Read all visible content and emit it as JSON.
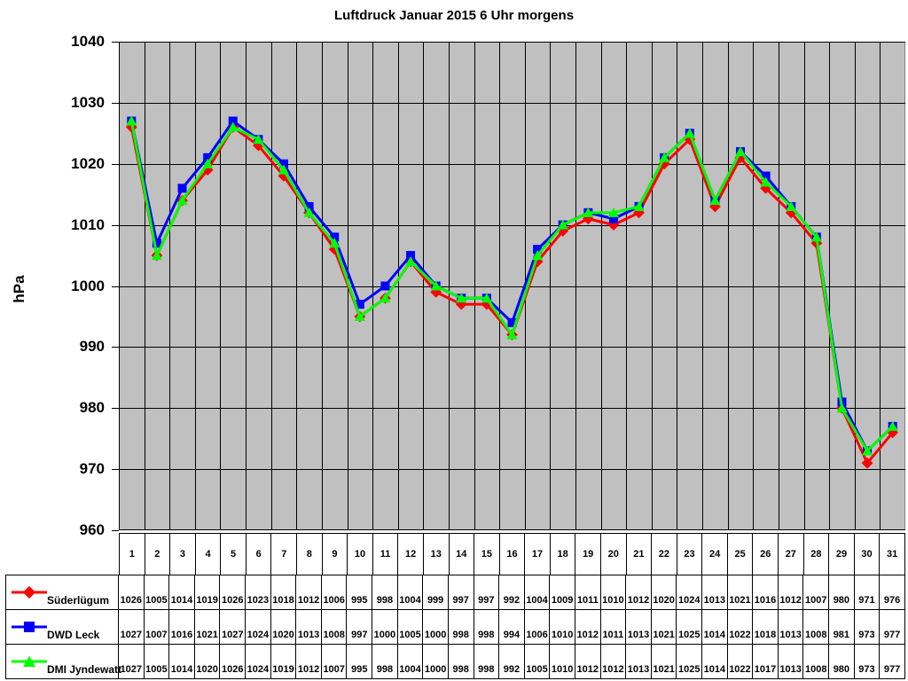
{
  "title": "Luftdruck Januar 2015 6 Uhr morgens",
  "chart_data": {
    "type": "line",
    "title": "Luftdruck Januar 2015 6 Uhr morgens",
    "xlabel": "",
    "ylabel": "hPa",
    "ylim": [
      960,
      1040
    ],
    "yticks": [
      1040,
      1030,
      1020,
      1010,
      1000,
      990,
      980,
      970,
      960
    ],
    "grid": true,
    "plot_bg_color": "#c0c0c0",
    "grid_color": "#000000",
    "legend_position": "table-left",
    "x": [
      1,
      2,
      3,
      4,
      5,
      6,
      7,
      8,
      9,
      10,
      11,
      12,
      13,
      14,
      15,
      16,
      17,
      18,
      19,
      20,
      21,
      22,
      23,
      24,
      25,
      26,
      27,
      28,
      29,
      30,
      31
    ],
    "series": [
      {
        "name": "Süderlügum",
        "color": "#ff0000",
        "marker": "diamond",
        "values": [
          1026,
          1005,
          1014,
          1019,
          1026,
          1023,
          1018,
          1012,
          1006,
          995,
          998,
          1004,
          999,
          997,
          997,
          992,
          1004,
          1009,
          1011,
          1010,
          1012,
          1020,
          1024,
          1013,
          1021,
          1016,
          1012,
          1007,
          980,
          971,
          976
        ]
      },
      {
        "name": "DWD Leck",
        "color": "#0000ff",
        "marker": "square",
        "values": [
          1027,
          1007,
          1016,
          1021,
          1027,
          1024,
          1020,
          1013,
          1008,
          997,
          1000,
          1005,
          1000,
          998,
          998,
          994,
          1006,
          1010,
          1012,
          1011,
          1013,
          1021,
          1025,
          1014,
          1022,
          1018,
          1013,
          1008,
          981,
          973,
          977
        ]
      },
      {
        "name": "DMI Jyndewatt",
        "color": "#00ff00",
        "marker": "triangle",
        "values": [
          1027,
          1005,
          1014,
          1020,
          1026,
          1024,
          1019,
          1012,
          1007,
          995,
          998,
          1004,
          1000,
          998,
          998,
          992,
          1005,
          1010,
          1012,
          1012,
          1013,
          1021,
          1025,
          1014,
          1022,
          1017,
          1013,
          1008,
          980,
          973,
          977
        ]
      }
    ]
  }
}
